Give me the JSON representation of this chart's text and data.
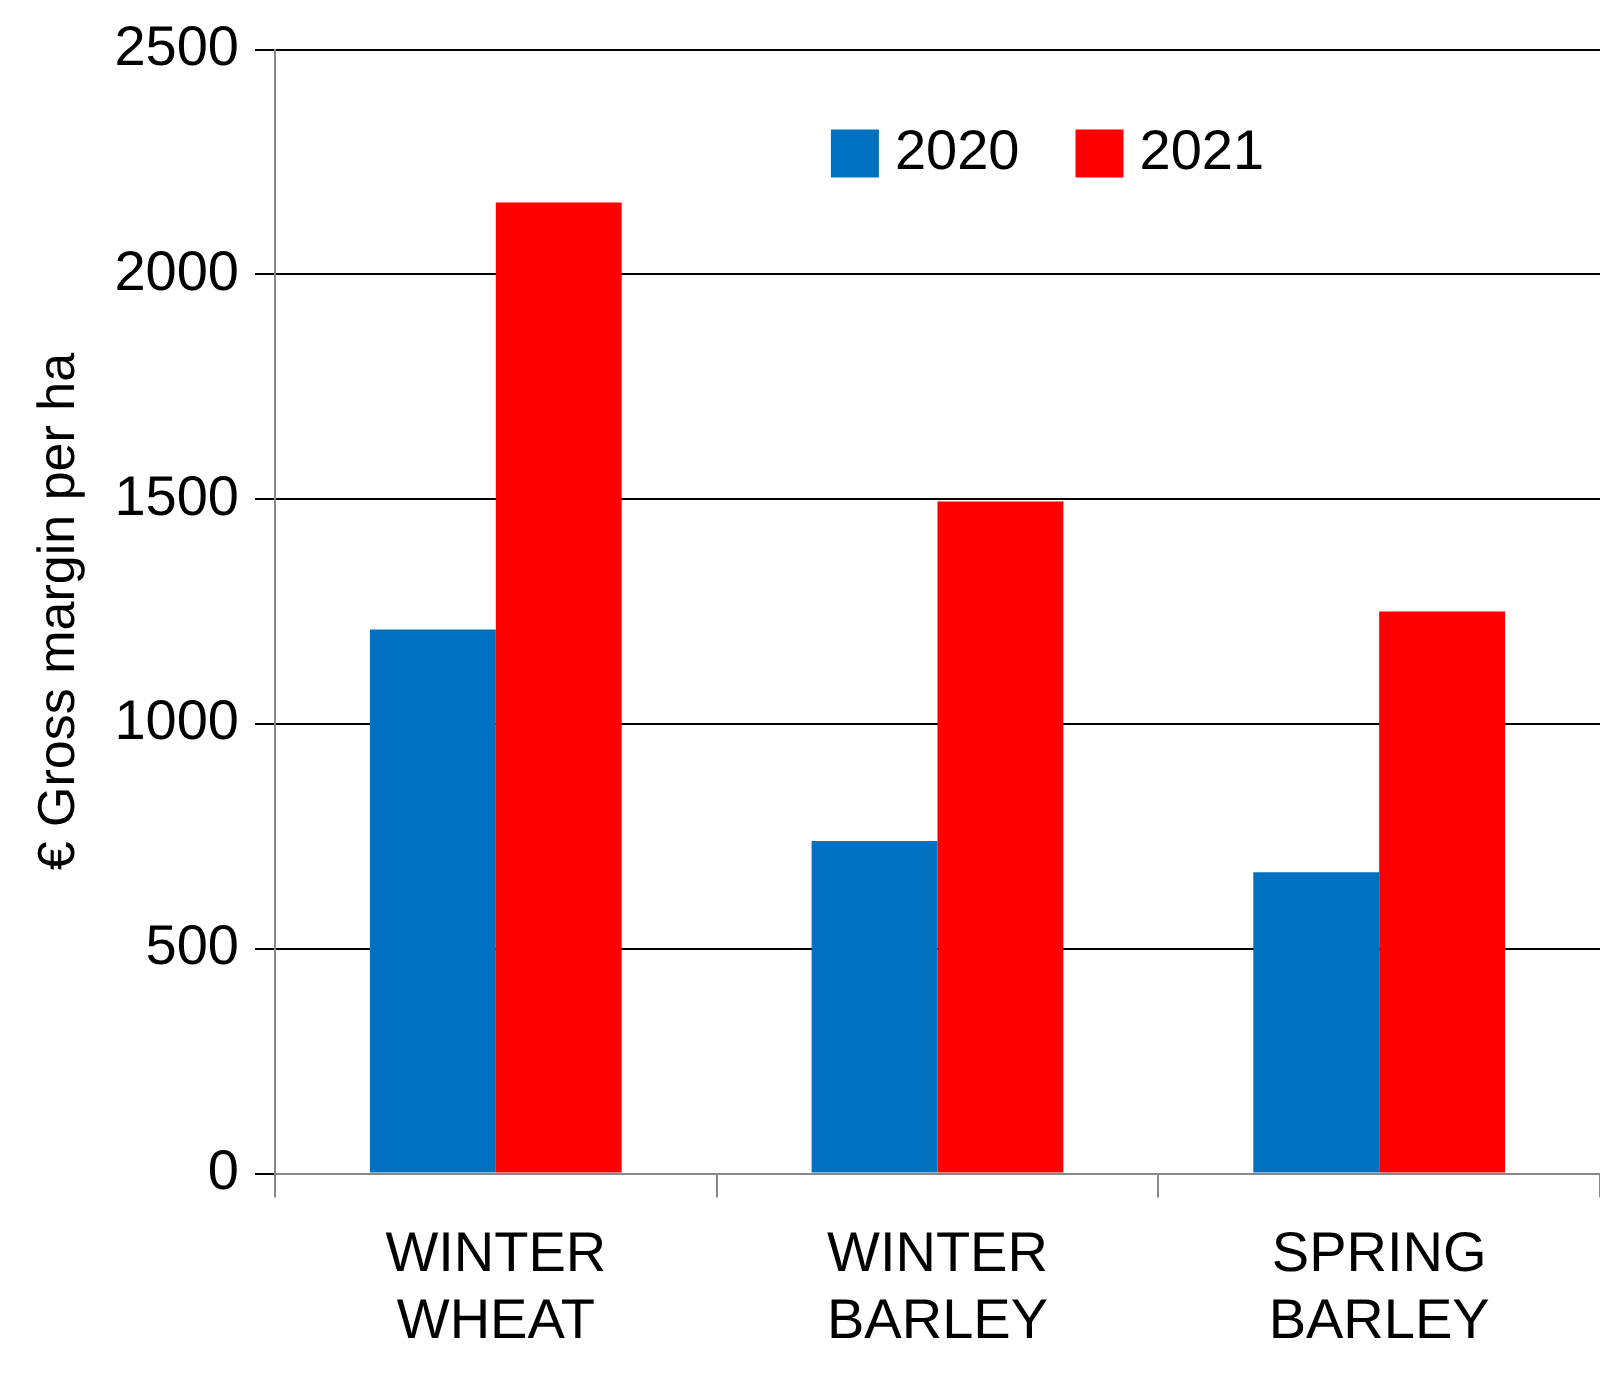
{
  "chart_data": {
    "type": "bar",
    "ylabel": "€ Gross margin per ha",
    "categories": [
      "WINTER WHEAT",
      "WINTER BARLEY",
      "SPRING BARLEY"
    ],
    "series": [
      {
        "name": "2020",
        "color": "#0070c0",
        "values": [
          1210,
          740,
          670
        ]
      },
      {
        "name": "2021",
        "color": "#ff0000",
        "values": [
          2160,
          1495,
          1250
        ]
      }
    ],
    "ylim": [
      0,
      2500
    ],
    "yticks": [
      0,
      500,
      1000,
      1500,
      2000,
      2500
    ],
    "grid": "y",
    "legend": "top"
  }
}
